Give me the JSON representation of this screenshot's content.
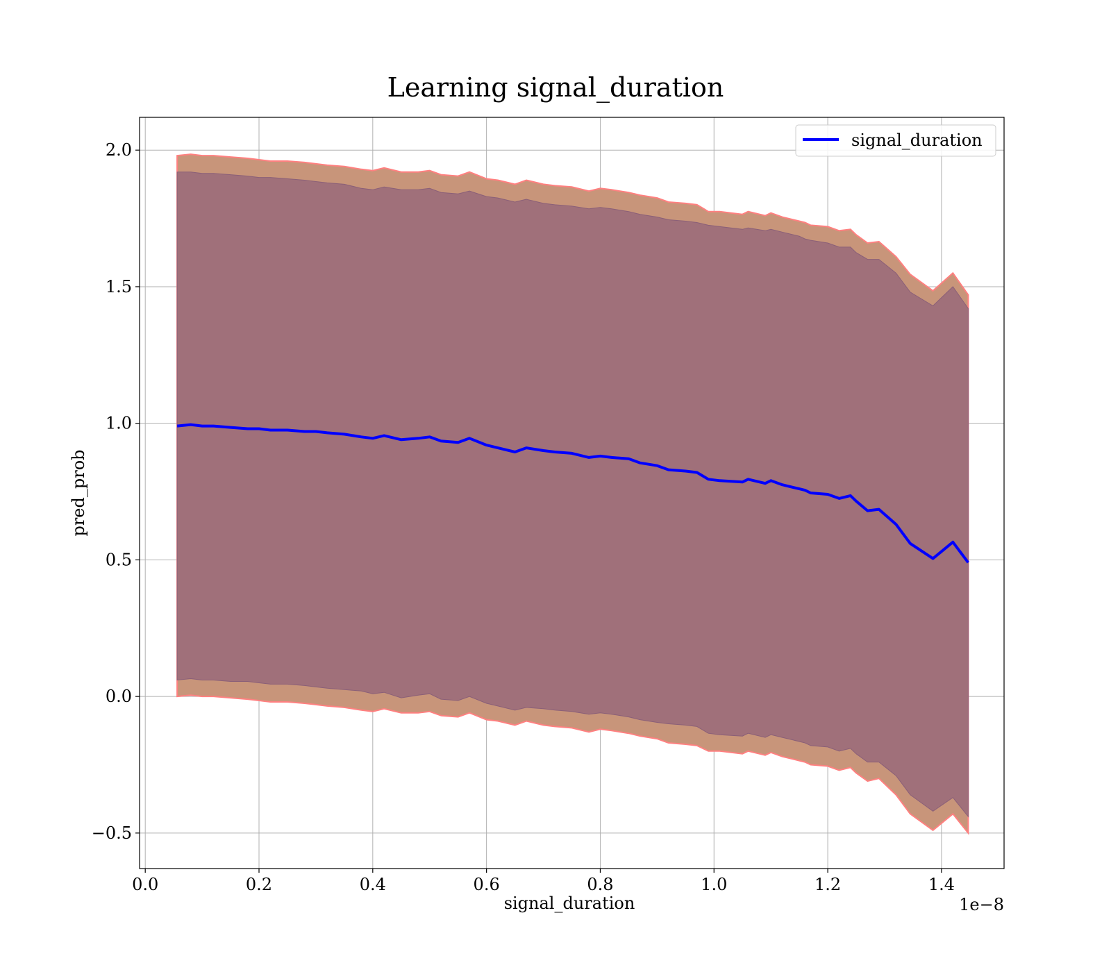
{
  "chart_data": {
    "type": "area",
    "title": "Learning signal_duration",
    "xlabel": "signal_duration",
    "ylabel": "pred_prob",
    "x_offset_text": "1e−8",
    "xlim": [
      -0.01,
      1.51
    ],
    "ylim": [
      -0.63,
      2.12
    ],
    "x_ticks": [
      0.0,
      0.2,
      0.4,
      0.6,
      0.8,
      1.0,
      1.2,
      1.4
    ],
    "x_tick_labels": [
      "0.0",
      "0.2",
      "0.4",
      "0.6",
      "0.8",
      "1.0",
      "1.2",
      "1.4"
    ],
    "y_ticks": [
      -0.5,
      0.0,
      0.5,
      1.0,
      1.5,
      2.0
    ],
    "y_tick_labels": [
      "−0.5",
      "0.0",
      "0.5",
      "1.0",
      "1.5",
      "2.0"
    ],
    "grid": true,
    "legend_position": "top-right",
    "colors": {
      "line": "#0000ff",
      "outer_band": "#c8957a",
      "outer_band_edge": "#ff8080",
      "inner_band": "#a0707a"
    },
    "series": [
      {
        "name": "signal_duration",
        "x": [
          0.056,
          0.08,
          0.1,
          0.12,
          0.15,
          0.18,
          0.2,
          0.22,
          0.25,
          0.28,
          0.3,
          0.32,
          0.35,
          0.38,
          0.4,
          0.42,
          0.45,
          0.48,
          0.5,
          0.52,
          0.55,
          0.57,
          0.6,
          0.62,
          0.65,
          0.67,
          0.7,
          0.72,
          0.75,
          0.78,
          0.8,
          0.82,
          0.85,
          0.87,
          0.9,
          0.92,
          0.95,
          0.97,
          0.99,
          1.01,
          1.05,
          1.06,
          1.09,
          1.1,
          1.12,
          1.15,
          1.16,
          1.17,
          1.2,
          1.22,
          1.24,
          1.25,
          1.27,
          1.29,
          1.32,
          1.345,
          1.385,
          1.42,
          1.447
        ],
        "y": [
          0.99,
          0.995,
          0.99,
          0.99,
          0.985,
          0.98,
          0.98,
          0.975,
          0.975,
          0.97,
          0.97,
          0.965,
          0.96,
          0.95,
          0.945,
          0.955,
          0.94,
          0.945,
          0.95,
          0.935,
          0.93,
          0.945,
          0.92,
          0.91,
          0.895,
          0.91,
          0.9,
          0.895,
          0.89,
          0.875,
          0.88,
          0.875,
          0.87,
          0.855,
          0.845,
          0.83,
          0.825,
          0.82,
          0.795,
          0.79,
          0.785,
          0.795,
          0.78,
          0.79,
          0.775,
          0.76,
          0.755,
          0.745,
          0.74,
          0.725,
          0.735,
          0.715,
          0.68,
          0.685,
          0.63,
          0.56,
          0.505,
          0.565,
          0.49
        ],
        "inner_upper": [
          1.92,
          1.92,
          1.915,
          1.915,
          1.91,
          1.905,
          1.9,
          1.9,
          1.895,
          1.89,
          1.885,
          1.88,
          1.875,
          1.86,
          1.855,
          1.865,
          1.855,
          1.855,
          1.86,
          1.845,
          1.84,
          1.85,
          1.83,
          1.825,
          1.81,
          1.82,
          1.805,
          1.8,
          1.795,
          1.785,
          1.79,
          1.785,
          1.775,
          1.765,
          1.755,
          1.745,
          1.74,
          1.735,
          1.725,
          1.72,
          1.71,
          1.715,
          1.705,
          1.71,
          1.7,
          1.685,
          1.675,
          1.67,
          1.66,
          1.645,
          1.645,
          1.625,
          1.6,
          1.6,
          1.55,
          1.48,
          1.43,
          1.5,
          1.42
        ],
        "inner_lower": [
          0.06,
          0.065,
          0.06,
          0.06,
          0.055,
          0.055,
          0.05,
          0.045,
          0.045,
          0.04,
          0.035,
          0.03,
          0.025,
          0.02,
          0.01,
          0.015,
          -0.005,
          0.005,
          0.01,
          -0.01,
          -0.015,
          0.0,
          -0.025,
          -0.035,
          -0.05,
          -0.04,
          -0.045,
          -0.05,
          -0.055,
          -0.065,
          -0.06,
          -0.065,
          -0.075,
          -0.085,
          -0.095,
          -0.1,
          -0.105,
          -0.11,
          -0.135,
          -0.14,
          -0.145,
          -0.135,
          -0.15,
          -0.14,
          -0.15,
          -0.165,
          -0.17,
          -0.18,
          -0.185,
          -0.2,
          -0.19,
          -0.21,
          -0.24,
          -0.24,
          -0.29,
          -0.36,
          -0.42,
          -0.37,
          -0.44
        ],
        "outer_upper": [
          1.98,
          1.985,
          1.98,
          1.98,
          1.975,
          1.97,
          1.965,
          1.96,
          1.96,
          1.955,
          1.95,
          1.945,
          1.94,
          1.93,
          1.925,
          1.935,
          1.92,
          1.92,
          1.925,
          1.91,
          1.905,
          1.92,
          1.895,
          1.89,
          1.875,
          1.89,
          1.875,
          1.87,
          1.865,
          1.85,
          1.86,
          1.855,
          1.845,
          1.835,
          1.825,
          1.81,
          1.805,
          1.8,
          1.775,
          1.775,
          1.765,
          1.775,
          1.76,
          1.77,
          1.755,
          1.74,
          1.735,
          1.725,
          1.72,
          1.705,
          1.71,
          1.69,
          1.66,
          1.665,
          1.61,
          1.545,
          1.485,
          1.55,
          1.47
        ],
        "outer_lower": [
          0.0,
          0.005,
          0.0,
          0.0,
          -0.005,
          -0.01,
          -0.015,
          -0.02,
          -0.02,
          -0.025,
          -0.03,
          -0.035,
          -0.04,
          -0.05,
          -0.055,
          -0.045,
          -0.06,
          -0.06,
          -0.055,
          -0.07,
          -0.075,
          -0.06,
          -0.085,
          -0.09,
          -0.105,
          -0.09,
          -0.105,
          -0.11,
          -0.115,
          -0.13,
          -0.12,
          -0.125,
          -0.135,
          -0.145,
          -0.155,
          -0.17,
          -0.175,
          -0.18,
          -0.2,
          -0.2,
          -0.21,
          -0.2,
          -0.215,
          -0.205,
          -0.22,
          -0.235,
          -0.24,
          -0.25,
          -0.255,
          -0.27,
          -0.26,
          -0.28,
          -0.31,
          -0.3,
          -0.36,
          -0.43,
          -0.49,
          -0.43,
          -0.5
        ]
      }
    ]
  }
}
